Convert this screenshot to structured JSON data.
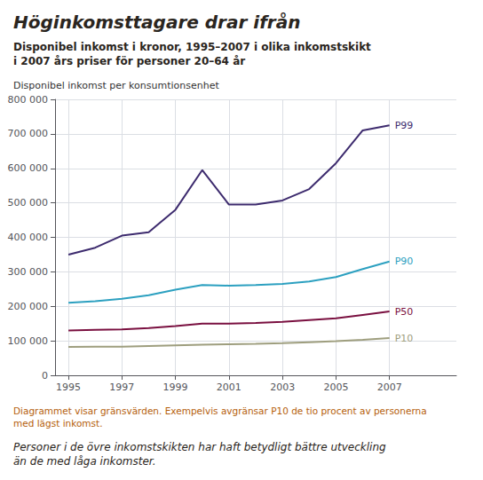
{
  "chart_data": {
    "type": "line",
    "title": "Höginkomsttagare drar ifrån",
    "subtitle": "Disponibel inkomst i kronor, 1995–2007 i olika inkomstskikt\ni 2007 års priser för personer 20–64 år",
    "ylabel": "Disponibel inkomst per konsumtionsenhet",
    "annotations": [
      "Diagrammet visar gränsvärden. Exempelvis avgränsar P10 de tio procent av personerna\nmed lägst inkomst.",
      "Personer i de övre inkomstskikten har haft betydligt bättre utveckling\nän de med låga inkomster."
    ],
    "x": [
      1995,
      1996,
      1997,
      1998,
      1999,
      2000,
      2001,
      2002,
      2003,
      2004,
      2005,
      2006,
      2007
    ],
    "series": [
      {
        "name": "P99",
        "color": "#3d2b6e",
        "values": [
          350000,
          370000,
          405000,
          415000,
          480000,
          595000,
          495000,
          495000,
          507000,
          540000,
          615000,
          710000,
          725000
        ]
      },
      {
        "name": "P90",
        "color": "#2ca0c0",
        "values": [
          210000,
          215000,
          222000,
          232000,
          248000,
          262000,
          260000,
          262000,
          265000,
          272000,
          285000,
          308000,
          330000
        ]
      },
      {
        "name": "P50",
        "color": "#7a1040",
        "values": [
          130000,
          132000,
          133000,
          137000,
          143000,
          150000,
          150000,
          152000,
          155000,
          160000,
          165000,
          175000,
          185000
        ]
      },
      {
        "name": "P10",
        "color": "#9e9e7e",
        "values": [
          82000,
          83000,
          83000,
          85000,
          87000,
          89000,
          90000,
          91000,
          93000,
          96000,
          99000,
          103000,
          108000
        ]
      }
    ],
    "xlim": [
      1994.5,
      2009.5
    ],
    "xticks": [
      1995,
      1997,
      1999,
      2001,
      2003,
      2005,
      2007
    ],
    "ylim": [
      0,
      800000
    ],
    "yticks": [
      0,
      {
        "value": 100000,
        "label": "100 000"
      },
      {
        "value": 200000,
        "label": "200 000"
      },
      {
        "value": 300000,
        "label": "300 000"
      },
      {
        "value": 400000,
        "label": "400 000"
      },
      {
        "value": 500000,
        "label": "500 000"
      },
      {
        "value": 600000,
        "label": "600 000"
      },
      {
        "value": 700000,
        "label": "700 000"
      },
      {
        "value": 800000,
        "label": "800 000"
      }
    ],
    "grid": true
  }
}
